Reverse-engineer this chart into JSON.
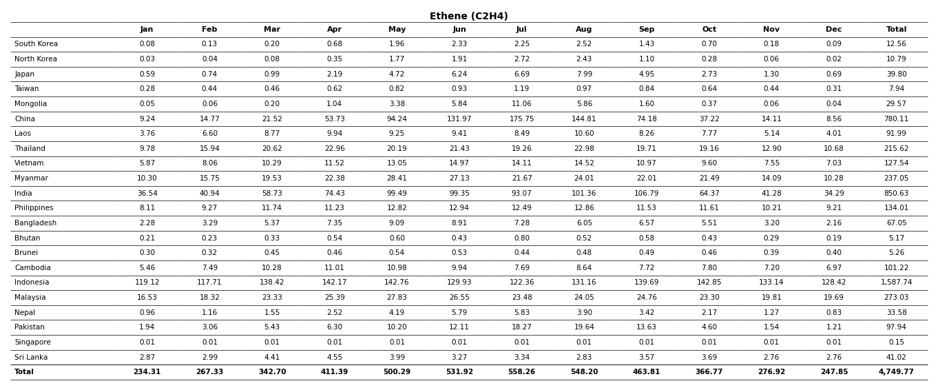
{
  "title": "Ethene (C2H4)",
  "columns": [
    "",
    "Jan",
    "Feb",
    "Mar",
    "Apr",
    "May",
    "Jun",
    "Jul",
    "Aug",
    "Sep",
    "Oct",
    "Nov",
    "Dec",
    "Total"
  ],
  "rows": [
    [
      "South Korea",
      "0.08",
      "0.13",
      "0.20",
      "0.68",
      "1.96",
      "2.33",
      "2.25",
      "2.52",
      "1.43",
      "0.70",
      "0.18",
      "0.09",
      "12.56"
    ],
    [
      "North Korea",
      "0.03",
      "0.04",
      "0.08",
      "0.35",
      "1.77",
      "1.91",
      "2.72",
      "2.43",
      "1.10",
      "0.28",
      "0.06",
      "0.02",
      "10.79"
    ],
    [
      "Japan",
      "0.59",
      "0.74",
      "0.99",
      "2.19",
      "4.72",
      "6.24",
      "6.69",
      "7.99",
      "4.95",
      "2.73",
      "1.30",
      "0.69",
      "39.80"
    ],
    [
      "Taiwan",
      "0.28",
      "0.44",
      "0.46",
      "0.62",
      "0.82",
      "0.93",
      "1.19",
      "0.97",
      "0.84",
      "0.64",
      "0.44",
      "0.31",
      "7.94"
    ],
    [
      "Mongolia",
      "0.05",
      "0.06",
      "0.20",
      "1.04",
      "3.38",
      "5.84",
      "11.06",
      "5.86",
      "1.60",
      "0.37",
      "0.06",
      "0.04",
      "29.57"
    ],
    [
      "China",
      "9.24",
      "14.77",
      "21.52",
      "53.73",
      "94.24",
      "131.97",
      "175.75",
      "144.81",
      "74.18",
      "37.22",
      "14.11",
      "8.56",
      "780.11"
    ],
    [
      "Laos",
      "3.76",
      "6.60",
      "8.77",
      "9.94",
      "9.25",
      "9.41",
      "8.49",
      "10.60",
      "8.26",
      "7.77",
      "5.14",
      "4.01",
      "91.99"
    ],
    [
      "Thailand",
      "9.78",
      "15.94",
      "20.62",
      "22.96",
      "20.19",
      "21.43",
      "19.26",
      "22.98",
      "19.71",
      "19.16",
      "12.90",
      "10.68",
      "215.62"
    ],
    [
      "Vietnam",
      "5.87",
      "8.06",
      "10.29",
      "11.52",
      "13.05",
      "14.97",
      "14.11",
      "14.52",
      "10.97",
      "9.60",
      "7.55",
      "7.03",
      "127.54"
    ],
    [
      "Myanmar",
      "10.30",
      "15.75",
      "19.53",
      "22.38",
      "28.41",
      "27.13",
      "21.67",
      "24.01",
      "22.01",
      "21.49",
      "14.09",
      "10.28",
      "237.05"
    ],
    [
      "India",
      "36.54",
      "40.94",
      "58.73",
      "74.43",
      "99.49",
      "99.35",
      "93.07",
      "101.36",
      "106.79",
      "64.37",
      "41.28",
      "34.29",
      "850.63"
    ],
    [
      "Philippines",
      "8.11",
      "9.27",
      "11.74",
      "11.23",
      "12.82",
      "12.94",
      "12.49",
      "12.86",
      "11.53",
      "11.61",
      "10.21",
      "9.21",
      "134.01"
    ],
    [
      "Bangladesh",
      "2.28",
      "3.29",
      "5.37",
      "7.35",
      "9.09",
      "8.91",
      "7.28",
      "6.05",
      "6.57",
      "5.51",
      "3.20",
      "2.16",
      "67.05"
    ],
    [
      "Bhutan",
      "0.21",
      "0.23",
      "0.33",
      "0.54",
      "0.60",
      "0.43",
      "0.80",
      "0.52",
      "0.58",
      "0.43",
      "0.29",
      "0.19",
      "5.17"
    ],
    [
      "Brunei",
      "0.30",
      "0.32",
      "0.45",
      "0.46",
      "0.54",
      "0.53",
      "0.44",
      "0.48",
      "0.49",
      "0.46",
      "0.39",
      "0.40",
      "5.26"
    ],
    [
      "Cambodia",
      "5.46",
      "7.49",
      "10.28",
      "11.01",
      "10.98",
      "9.94",
      "7.69",
      "8.64",
      "7.72",
      "7.80",
      "7.20",
      "6.97",
      "101.22"
    ],
    [
      "Indonesia",
      "119.12",
      "117.71",
      "138.42",
      "142.17",
      "142.76",
      "129.93",
      "122.36",
      "131.16",
      "139.69",
      "142.85",
      "133.14",
      "128.42",
      "1,587.74"
    ],
    [
      "Malaysia",
      "16.53",
      "18.32",
      "23.33",
      "25.39",
      "27.83",
      "26.55",
      "23.48",
      "24.05",
      "24.76",
      "23.30",
      "19.81",
      "19.69",
      "273.03"
    ],
    [
      "Nepal",
      "0.96",
      "1.16",
      "1.55",
      "2.52",
      "4.19",
      "5.79",
      "5.83",
      "3.90",
      "3.42",
      "2.17",
      "1.27",
      "0.83",
      "33.58"
    ],
    [
      "Pakistan",
      "1.94",
      "3.06",
      "5.43",
      "6.30",
      "10.20",
      "12.11",
      "18.27",
      "19.64",
      "13.63",
      "4.60",
      "1.54",
      "1.21",
      "97.94"
    ],
    [
      "Singapore",
      "0.01",
      "0.01",
      "0.01",
      "0.01",
      "0.01",
      "0.01",
      "0.01",
      "0.01",
      "0.01",
      "0.01",
      "0.01",
      "0.01",
      "0.15"
    ],
    [
      "Sri Lanka",
      "2.87",
      "2.99",
      "4.41",
      "4.55",
      "3.99",
      "3.27",
      "3.34",
      "2.83",
      "3.57",
      "3.69",
      "2.76",
      "2.76",
      "41.02"
    ],
    [
      "Total",
      "234.31",
      "267.33",
      "342.70",
      "411.39",
      "500.29",
      "531.92",
      "558.26",
      "548.20",
      "463.81",
      "366.77",
      "276.92",
      "247.85",
      "4,749.77"
    ]
  ],
  "bg_color": "#ffffff",
  "header_bg": "#ffffff",
  "total_row_bold": true,
  "title_fontsize": 10,
  "cell_fontsize": 7.5,
  "header_fontsize": 8
}
